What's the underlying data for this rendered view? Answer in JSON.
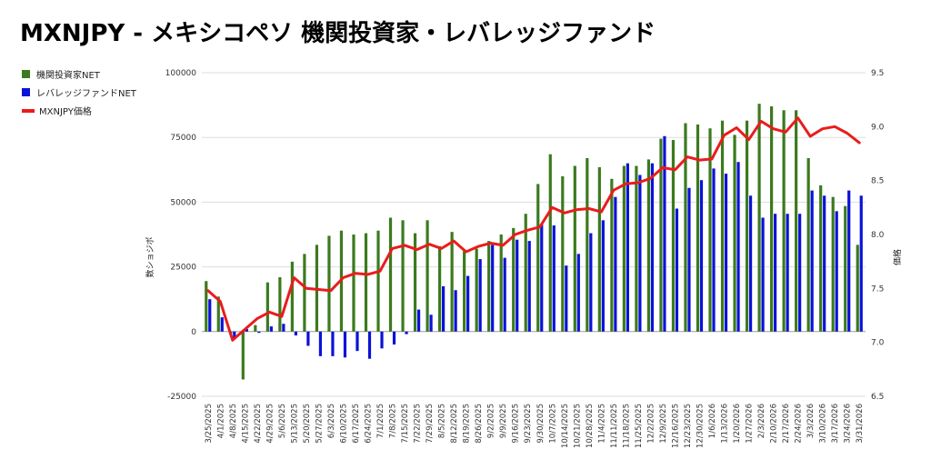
{
  "title": "MXNJPY - メキシコペソ 機関投資家・レバレッジファンド",
  "chart_data": {
    "type": "bar",
    "title": "MXNJPY - メキシコペソ 機関投資家・レバレッジファンド",
    "ylabel": "数ショジポ",
    "y2label": "価格",
    "ylim": [
      -25000,
      100000
    ],
    "y2lim": [
      6.5,
      9.5
    ],
    "yticks": [
      "100000",
      "75000",
      "50000",
      "25000",
      "0",
      "-25000"
    ],
    "y2ticks": [
      "9.5",
      "9.0",
      "8.5",
      "8.0",
      "7.5",
      "7.0",
      "6.5"
    ],
    "legend_position": "left",
    "grid": true,
    "categories": [
      "3/25/2025",
      "4/1/2025",
      "4/8/2025",
      "4/15/2025",
      "4/22/2025",
      "4/29/2025",
      "5/6/2025",
      "5/13/2025",
      "5/20/2025",
      "5/27/2025",
      "6/3/2025",
      "6/10/2025",
      "6/17/2025",
      "6/24/2025",
      "7/1/2025",
      "7/8/2025",
      "7/15/2025",
      "7/22/2025",
      "7/29/2025",
      "8/5/2025",
      "8/12/2025",
      "8/19/2025",
      "8/26/2025",
      "9/2/2025",
      "9/9/2025",
      "9/16/2025",
      "9/23/2025",
      "9/30/2025",
      "10/7/2025",
      "10/14/2025",
      "10/21/2025",
      "10/28/2025",
      "11/4/2025",
      "11/11/2025",
      "11/18/2025",
      "11/25/2025",
      "12/2/2025",
      "12/9/2025",
      "12/16/2025",
      "12/23/2025",
      "12/30/2025",
      "1/6/2026",
      "1/13/2026",
      "1/20/2026",
      "1/27/2026",
      "2/3/2026",
      "2/10/2026",
      "2/17/2026",
      "2/24/2026",
      "3/3/2026",
      "3/10/2026",
      "3/17/2026",
      "3/24/2026",
      "3/31/2026"
    ],
    "series": [
      {
        "name": "機関投資家NET",
        "kind": "bar",
        "color": "#3b7a1e",
        "values": [
          19500,
          13500,
          -1000,
          -18500,
          2500,
          19000,
          21000,
          27000,
          30000,
          33500,
          37000,
          39000,
          37500,
          38000,
          39000,
          44000,
          43000,
          38000,
          43000,
          33000,
          38500,
          31000,
          32000,
          35000,
          37500,
          40000,
          45500,
          57000,
          68500,
          60000,
          64000,
          67000,
          63500,
          59000,
          64000,
          64000,
          66500,
          74500,
          74000,
          80500,
          80000,
          78500,
          81500,
          76000,
          81500,
          88000,
          87000,
          85500,
          85500,
          67000,
          56500,
          52000,
          48500,
          33500
        ]
      },
      {
        "name": "レバレッジファンドNET",
        "kind": "bar",
        "color": "#0a12d8",
        "values": [
          12500,
          5500,
          -3000,
          1000,
          -500,
          2000,
          3000,
          -1500,
          -5500,
          -9500,
          -9500,
          -10000,
          -7500,
          -10500,
          -6500,
          -5000,
          -1000,
          8500,
          6500,
          17500,
          16000,
          21500,
          28000,
          33500,
          28500,
          35500,
          35000,
          41500,
          41000,
          25500,
          30000,
          38000,
          43000,
          52000,
          65000,
          60500,
          65000,
          75500,
          47500,
          55500,
          58500,
          63000,
          61000,
          65500,
          52500,
          44000,
          45500,
          45500,
          45500,
          54500,
          52500,
          46500,
          54500,
          52500
        ]
      },
      {
        "name": "MXNJPY価格",
        "kind": "line",
        "color": "#ea1c1c",
        "values": [
          7.48,
          7.38,
          7.02,
          7.12,
          7.22,
          7.28,
          7.24,
          7.6,
          7.5,
          7.49,
          7.48,
          7.6,
          7.64,
          7.63,
          7.66,
          7.87,
          7.9,
          7.86,
          7.91,
          7.87,
          7.94,
          7.84,
          7.89,
          7.92,
          7.9,
          8.0,
          8.04,
          8.07,
          8.25,
          8.2,
          8.23,
          8.24,
          8.21,
          8.41,
          8.47,
          8.48,
          8.52,
          8.62,
          8.6,
          8.72,
          8.69,
          8.7,
          8.92,
          8.99,
          8.88,
          9.05,
          8.98,
          8.95,
          9.08,
          8.91,
          8.98,
          9.0,
          8.94,
          8.85
        ]
      }
    ]
  }
}
